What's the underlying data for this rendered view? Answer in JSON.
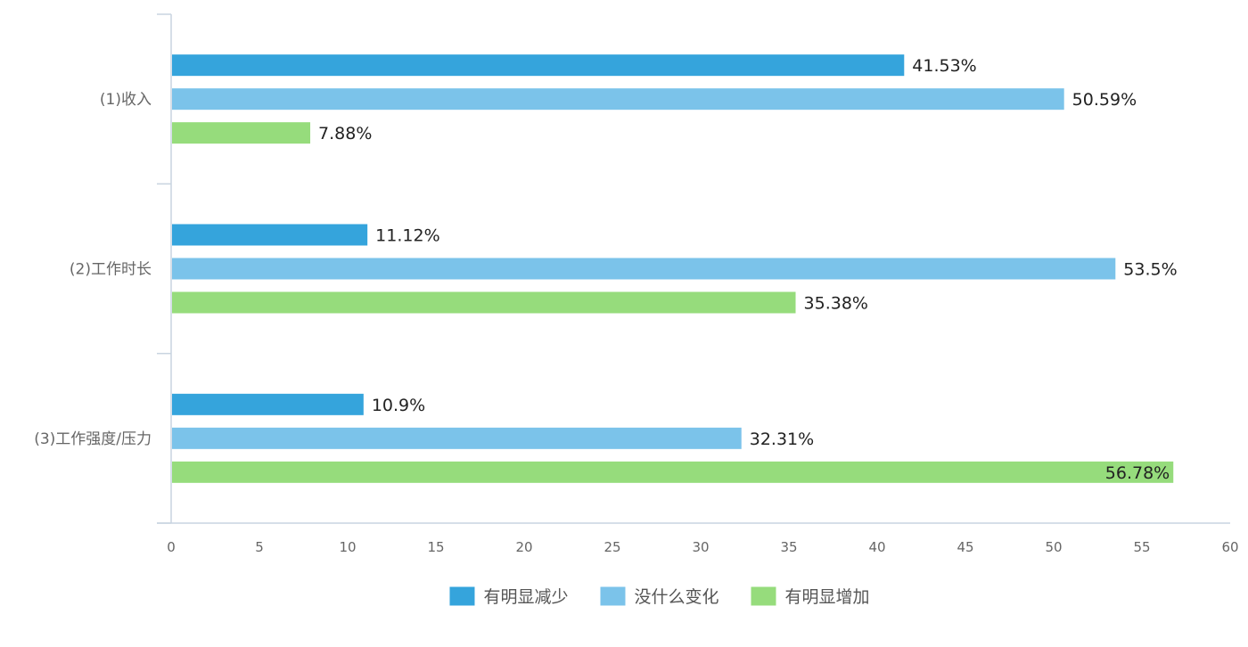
{
  "chart_data": {
    "type": "bar",
    "orientation": "horizontal",
    "categories": [
      "(1)收入",
      "(2)工作时长",
      "(3)工作强度/压力"
    ],
    "series": [
      {
        "name": "有明显减少",
        "color": "#35a4dc",
        "values": [
          41.53,
          11.12,
          10.9
        ],
        "labels": [
          "41.53%",
          "11.12%",
          "10.9%"
        ]
      },
      {
        "name": "没什么变化",
        "color": "#7bc3ea",
        "values": [
          50.59,
          53.5,
          32.31
        ],
        "labels": [
          "50.59%",
          "53.5%",
          "32.31%"
        ]
      },
      {
        "name": "有明显增加",
        "color": "#96dc7c",
        "values": [
          7.88,
          35.38,
          56.78
        ],
        "labels": [
          "7.88%",
          "35.38%",
          "56.78%"
        ]
      }
    ],
    "xlim": [
      0,
      60
    ],
    "xticks": [
      0,
      5,
      10,
      15,
      20,
      25,
      30,
      35,
      40,
      45,
      50,
      55,
      60
    ],
    "xtick_labels": [
      "0",
      "5",
      "10",
      "15",
      "20",
      "25",
      "30",
      "35",
      "40",
      "45",
      "50",
      "55",
      "60"
    ],
    "title": "",
    "xlabel": "",
    "ylabel": "",
    "grid": false,
    "legend_position": "bottom"
  }
}
